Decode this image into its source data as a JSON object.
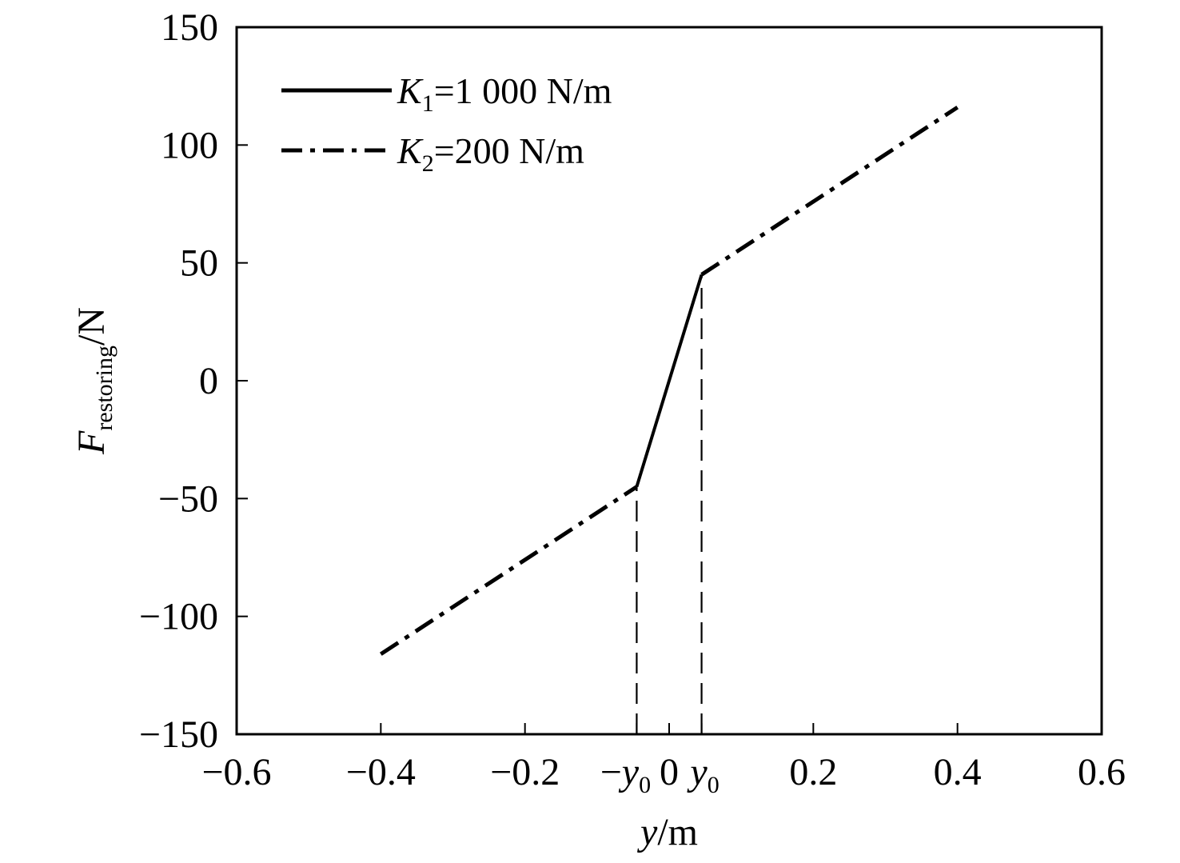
{
  "chart_data": {
    "type": "line",
    "xlabel": {
      "main": "y",
      "unit": "/m"
    },
    "ylabel": {
      "main": "F",
      "sub": "restoring",
      "unit": "/N"
    },
    "xlim": [
      -0.6,
      0.6
    ],
    "ylim": [
      -150,
      150
    ],
    "xticks": [
      {
        "value": -0.6,
        "label": "−0.6"
      },
      {
        "value": -0.4,
        "label": "−0.4"
      },
      {
        "value": -0.2,
        "label": "−0.2"
      },
      {
        "value": 0,
        "label": "0"
      },
      {
        "value": 0.2,
        "label": "0.2"
      },
      {
        "value": 0.4,
        "label": "0.4"
      },
      {
        "value": 0.6,
        "label": "0.6"
      }
    ],
    "yticks": [
      {
        "value": 150,
        "label": "150"
      },
      {
        "value": 100,
        "label": "100"
      },
      {
        "value": 50,
        "label": "50"
      },
      {
        "value": 0,
        "label": "0"
      },
      {
        "value": -50,
        "label": "−50"
      },
      {
        "value": -100,
        "label": "−100"
      },
      {
        "value": -150,
        "label": "−150"
      }
    ],
    "special_ticks": [
      {
        "value": -0.045,
        "prefix": "−",
        "main": "y",
        "sub": "0"
      },
      {
        "value": 0.045,
        "prefix": "",
        "main": "y",
        "sub": "0"
      }
    ],
    "series": [
      {
        "name": {
          "main": "K",
          "sub": "1",
          "rest": "=1 000 N/m"
        },
        "style": "solid",
        "x": [
          -0.045,
          0.045
        ],
        "y": [
          -45,
          45
        ]
      },
      {
        "name": {
          "main": "K",
          "sub": "2",
          "rest": "=200 N/m"
        },
        "style": "dashdot",
        "segments": [
          {
            "x": [
              -0.4,
              -0.045
            ],
            "y": [
              -116,
              -45
            ]
          },
          {
            "x": [
              0.045,
              0.4
            ],
            "y": [
              45,
              116
            ]
          }
        ]
      }
    ],
    "reference_lines": [
      {
        "x": -0.045,
        "from_y": -150,
        "to_y": -45,
        "style": "dashed"
      },
      {
        "x": 0.045,
        "from_y": -150,
        "to_y": 45,
        "style": "dashed"
      }
    ],
    "legend_position": "top-left",
    "grid": false
  }
}
